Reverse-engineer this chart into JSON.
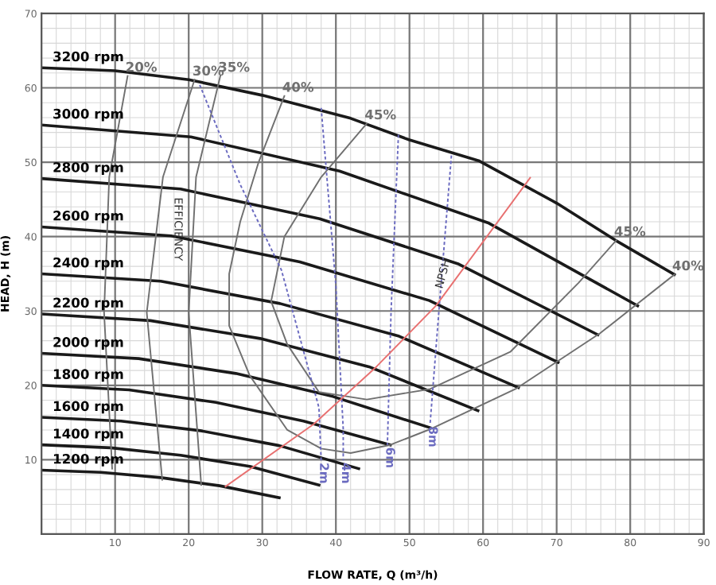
{
  "chart_data": {
    "type": "line",
    "xlabel": "FLOW RATE, Q (m³/h)",
    "ylabel": "HEAD, H (m)",
    "xlim": [
      0,
      90
    ],
    "ylim": [
      0,
      70
    ],
    "xticks": [
      10,
      20,
      30,
      40,
      50,
      60,
      70,
      80,
      90
    ],
    "yticks": [
      10,
      20,
      30,
      40,
      50,
      60,
      70
    ],
    "grid": true,
    "legend": false,
    "marker": "none",
    "annotations": [
      {
        "text": "EFFICIENCY",
        "x": 18.5,
        "y": 41
      },
      {
        "text": "NPSH",
        "x": 54.6,
        "y": 35
      }
    ],
    "series": [
      {
        "name": "3200 rpm",
        "color": "#1a1a1a",
        "line_style": "solid",
        "x": [
          86,
          78,
          70,
          59.4,
          50,
          42,
          30,
          20,
          10,
          0
        ],
        "values": [
          34.9,
          39.5,
          44.5,
          50.2,
          53,
          55.9,
          59,
          61.1,
          62.3,
          62.7
        ]
      },
      {
        "name": "3000 rpm",
        "color": "#1a1a1a",
        "line_style": "solid",
        "x": [
          81,
          60.8,
          40.5,
          20.3,
          0
        ],
        "values": [
          30.7,
          41.8,
          48.8,
          53.4,
          55
        ]
      },
      {
        "name": "2800 rpm",
        "color": "#1a1a1a",
        "line_style": "solid",
        "x": [
          75.6,
          56.7,
          37.8,
          18.9,
          0
        ],
        "values": [
          26.8,
          36.3,
          42.4,
          46.4,
          47.8
        ]
      },
      {
        "name": "2600 rpm",
        "color": "#1a1a1a",
        "line_style": "solid",
        "x": [
          70.2,
          52.7,
          35.1,
          17.6,
          0
        ],
        "values": [
          23.1,
          31.4,
          36.6,
          40.1,
          41.3
        ]
      },
      {
        "name": "2400 rpm",
        "color": "#1a1a1a",
        "line_style": "solid",
        "x": [
          64.8,
          48.6,
          32.4,
          16.2,
          0
        ],
        "values": [
          19.7,
          26.6,
          31,
          34,
          35
        ]
      },
      {
        "name": "2200 rpm",
        "color": "#1a1a1a",
        "line_style": "solid",
        "x": [
          59.3,
          44.5,
          29.7,
          14.8,
          0
        ],
        "values": [
          16.6,
          22.5,
          26.3,
          28.7,
          29.6
        ]
      },
      {
        "name": "2000 rpm",
        "color": "#1a1a1a",
        "line_style": "solid",
        "x": [
          52.8,
          39.6,
          26.4,
          13.2,
          0
        ],
        "values": [
          14.3,
          18.5,
          21.6,
          23.6,
          24.3
        ]
      },
      {
        "name": "1800 rpm",
        "color": "#1a1a1a",
        "line_style": "solid",
        "x": [
          47.4,
          35.6,
          23.7,
          11.9,
          0
        ],
        "values": [
          12,
          15.2,
          17.7,
          19.4,
          20
        ]
      },
      {
        "name": "1600 rpm",
        "color": "#1a1a1a",
        "line_style": "solid",
        "x": [
          43.1,
          32.3,
          21.6,
          10.8,
          0
        ],
        "values": [
          8.8,
          11.9,
          13.9,
          15.2,
          15.7
        ]
      },
      {
        "name": "1400 rpm",
        "color": "#1a1a1a",
        "line_style": "solid",
        "x": [
          37.7,
          28.3,
          18.9,
          9.4,
          0
        ],
        "values": [
          6.6,
          9.1,
          10.6,
          11.6,
          12
        ]
      },
      {
        "name": "1200 rpm",
        "color": "#1a1a1a",
        "line_style": "solid",
        "x": [
          32.3,
          24.2,
          16.2,
          8.1,
          0
        ],
        "values": [
          4.9,
          6.5,
          7.6,
          8.3,
          8.6
        ]
      },
      {
        "name": "20%",
        "color": "#707070",
        "line_style": "solid",
        "x": [
          9.6,
          8.5,
          9.2,
          11.7
        ],
        "values": [
          8.8,
          29.8,
          48,
          61.6
        ]
      },
      {
        "name": "30%",
        "color": "#707070",
        "line_style": "solid",
        "x": [
          16.4,
          14.3,
          16.5,
          20.8
        ],
        "values": [
          7.3,
          29.8,
          48,
          61.1
        ]
      },
      {
        "name": "35%",
        "color": "#707070",
        "line_style": "solid",
        "x": [
          21.7,
          20,
          21,
          24.3
        ],
        "values": [
          6.6,
          29.8,
          48,
          61.6
        ]
      },
      {
        "name": "40%",
        "color": "#707070",
        "line_style": "solid",
        "x": [
          86,
          75.9,
          64.4,
          52.8,
          47.4,
          42,
          38,
          33.4,
          28.3,
          25.5,
          25.5,
          27,
          29.5,
          33
        ],
        "values": [
          34.9,
          27,
          19.5,
          14.1,
          12,
          10.9,
          11.5,
          14,
          21.3,
          28,
          35,
          42,
          50,
          58.9
        ]
      },
      {
        "name": "45%",
        "color": "#707070",
        "line_style": "solid",
        "x": [
          78.1,
          73,
          63.7,
          52.8,
          44.2,
          37.7,
          33.4,
          31.2,
          33,
          38,
          44.2
        ],
        "values": [
          39.5,
          33.8,
          24.5,
          19.5,
          18.1,
          19.1,
          25.5,
          31.3,
          40,
          48,
          55.2
        ]
      },
      {
        "name": "2m",
        "color": "#6b6bc0",
        "line_style": "dashed",
        "x": [
          21.5,
          27,
          32.6,
          37.7,
          38
        ],
        "values": [
          60.4,
          47,
          35.5,
          17,
          9.9
        ]
      },
      {
        "name": "4m",
        "color": "#6b6bc0",
        "line_style": "dashed",
        "x": [
          38,
          40,
          41,
          41
        ],
        "values": [
          57.3,
          33.4,
          14.1,
          9.9
        ]
      },
      {
        "name": "6m",
        "color": "#6b6bc0",
        "line_style": "dashed",
        "x": [
          48.5,
          47.5,
          47
        ],
        "values": [
          53.7,
          30,
          12
        ]
      },
      {
        "name": "8m",
        "color": "#6b6bc0",
        "line_style": "dashed",
        "x": [
          55.7,
          54,
          52.8
        ],
        "values": [
          50.9,
          30,
          14.8
        ]
      },
      {
        "color": "#e87070",
        "line_style": "solid",
        "x": [
          25,
          37,
          45.5,
          53.6,
          66.4
        ],
        "values": [
          6.4,
          14.8,
          22.5,
          30.7,
          47.9
        ]
      }
    ]
  }
}
